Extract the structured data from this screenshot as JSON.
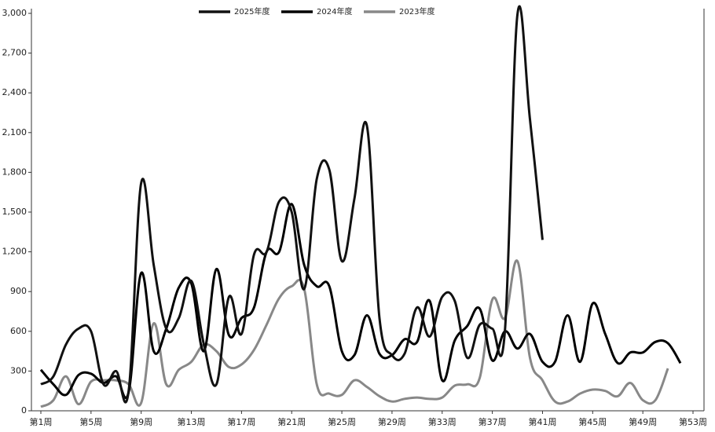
{
  "chart_data": {
    "type": "line",
    "categories": [
      "第1周",
      null,
      null,
      null,
      "第5周",
      null,
      null,
      null,
      "第9周",
      null,
      null,
      null,
      "第13周",
      null,
      null,
      null,
      "第17周",
      null,
      null,
      null,
      "第21周",
      null,
      null,
      null,
      "第25周",
      null,
      null,
      null,
      "第29周",
      null,
      null,
      null,
      "第33周",
      null,
      null,
      null,
      "第37周",
      null,
      null,
      null,
      "第41周",
      null,
      null,
      null,
      "第45周",
      null,
      null,
      null,
      "第49周",
      null,
      null,
      null,
      "第53周"
    ],
    "series": [
      {
        "name": "2025年度",
        "color": "#111111",
        "values": [
          200,
          260,
          500,
          620,
          600,
          200,
          300,
          150,
          1720,
          1100,
          620,
          700,
          980,
          500,
          200,
          860,
          580,
          1180,
          1200,
          1580,
          1500,
          920,
          1750,
          1820,
          1130,
          1600,
          2150,
          700,
          420,
          430,
          780,
          560,
          860,
          830,
          400,
          650,
          620,
          600,
          2990,
          2200,
          1290,
          null,
          null,
          null,
          null,
          null,
          null,
          null,
          null,
          null,
          null,
          null,
          null
        ]
      },
      {
        "name": "2024年度",
        "color": "#000000",
        "values": [
          310,
          200,
          120,
          270,
          280,
          210,
          260,
          140,
          1040,
          450,
          620,
          930,
          960,
          450,
          1070,
          570,
          700,
          780,
          1200,
          1200,
          1560,
          1100,
          940,
          940,
          450,
          420,
          720,
          430,
          420,
          540,
          520,
          830,
          230,
          530,
          640,
          770,
          380,
          600,
          470,
          580,
          370,
          370,
          720,
          370,
          810,
          580,
          360,
          440,
          440,
          520,
          510,
          360,
          null
        ]
      },
      {
        "name": "2023年度",
        "color": "#888888",
        "values": [
          30,
          80,
          260,
          50,
          220,
          230,
          230,
          200,
          60,
          660,
          200,
          310,
          370,
          500,
          450,
          330,
          350,
          460,
          650,
          850,
          940,
          920,
          200,
          130,
          120,
          230,
          180,
          110,
          70,
          90,
          100,
          90,
          100,
          190,
          200,
          250,
          840,
          700,
          1130,
          400,
          230,
          70,
          70,
          130,
          160,
          150,
          110,
          210,
          80,
          80,
          320,
          null,
          null
        ]
      }
    ],
    "ylim": [
      0,
      3000
    ],
    "yticks": [
      0,
      300,
      600,
      900,
      {
        "value": 1200,
        "label": "1,200"
      },
      {
        "value": 1500,
        "label": "1,500"
      },
      {
        "value": 1800,
        "label": "1,800"
      },
      {
        "value": 2100,
        "label": "2,100"
      },
      {
        "value": 2400,
        "label": "2,400"
      },
      {
        "value": 2700,
        "label": "2,700"
      },
      {
        "value": 3000,
        "label": "3,000"
      }
    ],
    "legend": "top"
  }
}
